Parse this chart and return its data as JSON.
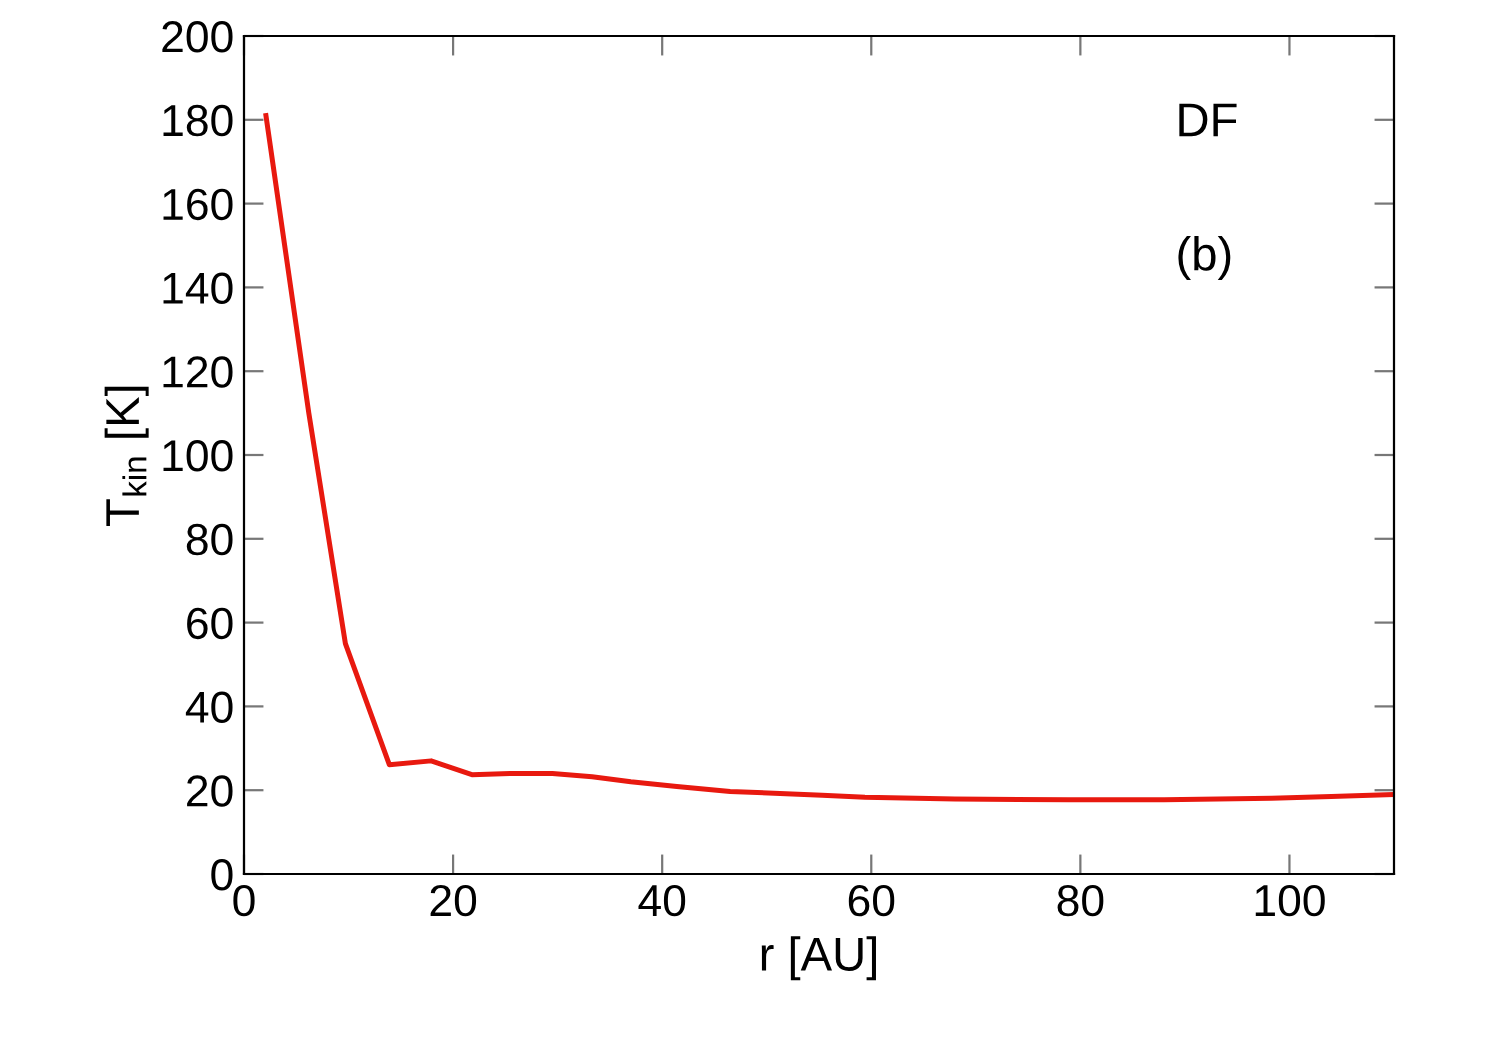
{
  "chart_data": {
    "type": "line",
    "xlabel": "r [AU]",
    "ylabel": "T$_{kin}$ [K]",
    "x": [
      2.1,
      6.2,
      9.7,
      13.9,
      17.9,
      21.8,
      25.7,
      29.5,
      33.3,
      37,
      41.4,
      46.5,
      55.3,
      59.4,
      68,
      78.9,
      88,
      98.3,
      104,
      110
    ],
    "series": [
      {
        "color": "#e8190f",
        "values": [
          181,
          110,
          55,
          26.1,
          27,
          23.7,
          24,
          24,
          23.2,
          22,
          20.9,
          19.7,
          18.8,
          18.3,
          17.9,
          17.7,
          17.7,
          18.1,
          18.5,
          19
        ]
      }
    ],
    "xlim": [
      0,
      110
    ],
    "ylim": [
      0,
      200
    ],
    "xticks": [
      0,
      20,
      40,
      60,
      80,
      100
    ],
    "yticks": [
      0,
      20,
      40,
      60,
      80,
      100,
      120,
      140,
      160,
      180,
      200
    ],
    "grid": false,
    "marker": "none",
    "line_style": "solid",
    "annotations": [
      "DF",
      "(b)"
    ]
  }
}
